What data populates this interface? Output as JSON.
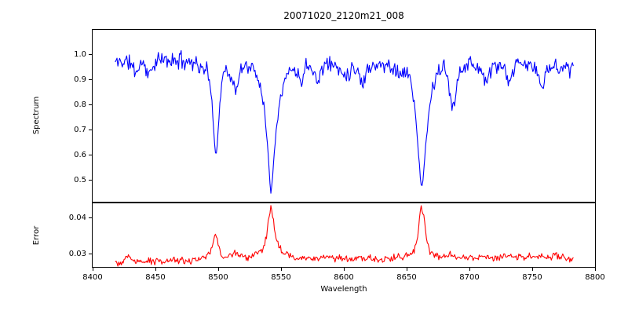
{
  "figure": {
    "title": "20071020_2120m21_008",
    "xlabel": "Wavelength",
    "background_color": "#ffffff",
    "text_color": "#000000",
    "axis_color": "#000000"
  },
  "chart_data": [
    {
      "type": "line",
      "series_name": "spectrum",
      "ylabel": "Spectrum",
      "line_color": "#0000ff",
      "legend": "none",
      "grid": false,
      "xlim": [
        8400,
        8800
      ],
      "ylim": [
        0.4156,
        1.1
      ],
      "yticks": [
        {
          "value": 0.5,
          "label": "0.5"
        },
        {
          "value": 0.6,
          "label": "0.6"
        },
        {
          "value": 0.7,
          "label": "0.7"
        },
        {
          "value": 0.8,
          "label": "0.8"
        },
        {
          "value": 0.9,
          "label": "0.9"
        },
        {
          "value": 1.0,
          "label": "1.0"
        }
      ],
      "xticks": [],
      "x_start": 8418,
      "x_end": 8783,
      "sample_step": 0.7,
      "continuum_level": 0.975,
      "noise_amplitude": 0.042,
      "noise_floor": 0.4,
      "noise_ref": 0.98,
      "noise_seed": 11,
      "absorption_lines": [
        {
          "center": 8498,
          "min_flux": 0.59
        },
        {
          "center": 8514,
          "min_flux": 0.86
        },
        {
          "center": 8542,
          "min_flux": 0.44
        },
        {
          "center": 8662,
          "min_flux": 0.46
        },
        {
          "center": 8686,
          "min_flux": 0.78
        }
      ],
      "envelope_points": [
        [
          8418,
          0.97
        ],
        [
          8424,
          0.975
        ],
        [
          8430,
          0.97
        ],
        [
          8434,
          0.93
        ],
        [
          8440,
          0.975
        ],
        [
          8445,
          0.915
        ],
        [
          8449,
          0.97
        ],
        [
          8456,
          0.98
        ],
        [
          8464,
          0.975
        ],
        [
          8470,
          0.98
        ],
        [
          8477,
          0.975
        ],
        [
          8483,
          0.97
        ],
        [
          8487,
          0.935
        ],
        [
          8490,
          0.955
        ],
        [
          8493,
          0.9
        ],
        [
          8496,
          0.74
        ],
        [
          8498,
          0.595
        ],
        [
          8499,
          0.62
        ],
        [
          8501,
          0.8
        ],
        [
          8503,
          0.9
        ],
        [
          8506,
          0.95
        ],
        [
          8509,
          0.93
        ],
        [
          8512,
          0.875
        ],
        [
          8515,
          0.865
        ],
        [
          8518,
          0.935
        ],
        [
          8521,
          0.96
        ],
        [
          8525,
          0.955
        ],
        [
          8529,
          0.935
        ],
        [
          8533,
          0.89
        ],
        [
          8536,
          0.82
        ],
        [
          8539,
          0.66
        ],
        [
          8541,
          0.5
        ],
        [
          8542,
          0.447
        ],
        [
          8543,
          0.5
        ],
        [
          8545,
          0.64
        ],
        [
          8547,
          0.75
        ],
        [
          8550,
          0.85
        ],
        [
          8554,
          0.91
        ],
        [
          8558,
          0.95
        ],
        [
          8562,
          0.93
        ],
        [
          8566,
          0.9
        ],
        [
          8570,
          0.96
        ],
        [
          8575,
          0.965
        ],
        [
          8579,
          0.875
        ],
        [
          8582,
          0.95
        ],
        [
          8588,
          0.965
        ],
        [
          8594,
          0.955
        ],
        [
          8599,
          0.93
        ],
        [
          8603,
          0.925
        ],
        [
          8608,
          0.955
        ],
        [
          8612,
          0.93
        ],
        [
          8615,
          0.87
        ],
        [
          8618,
          0.945
        ],
        [
          8624,
          0.965
        ],
        [
          8630,
          0.955
        ],
        [
          8636,
          0.96
        ],
        [
          8641,
          0.945
        ],
        [
          8645,
          0.92
        ],
        [
          8649,
          0.935
        ],
        [
          8653,
          0.9
        ],
        [
          8656,
          0.82
        ],
        [
          8659,
          0.64
        ],
        [
          8661,
          0.5
        ],
        [
          8662,
          0.468
        ],
        [
          8663,
          0.5
        ],
        [
          8665,
          0.63
        ],
        [
          8668,
          0.78
        ],
        [
          8671,
          0.88
        ],
        [
          8675,
          0.93
        ],
        [
          8679,
          0.955
        ],
        [
          8683,
          0.9
        ],
        [
          8686,
          0.79
        ],
        [
          8688,
          0.8
        ],
        [
          8691,
          0.93
        ],
        [
          8696,
          0.96
        ],
        [
          8702,
          0.965
        ],
        [
          8708,
          0.95
        ],
        [
          8714,
          0.885
        ],
        [
          8718,
          0.95
        ],
        [
          8723,
          0.96
        ],
        [
          8728,
          0.94
        ],
        [
          8731,
          0.87
        ],
        [
          8735,
          0.945
        ],
        [
          8740,
          0.965
        ],
        [
          8746,
          0.96
        ],
        [
          8752,
          0.95
        ],
        [
          8756,
          0.9
        ],
        [
          8759,
          0.875
        ],
        [
          8762,
          0.94
        ],
        [
          8768,
          0.96
        ],
        [
          8774,
          0.955
        ],
        [
          8779,
          0.945
        ],
        [
          8783,
          0.95
        ]
      ]
    },
    {
      "type": "line",
      "series_name": "error",
      "ylabel": "Error",
      "line_color": "#ff0000",
      "legend": "none",
      "grid": false,
      "xlim": [
        8400,
        8800
      ],
      "ylim": [
        0.0265,
        0.044
      ],
      "yticks": [
        {
          "value": 0.03,
          "label": "0.03"
        },
        {
          "value": 0.04,
          "label": "0.04"
        }
      ],
      "xticks": [
        {
          "value": 8400,
          "label": "8400"
        },
        {
          "value": 8450,
          "label": "8450"
        },
        {
          "value": 8500,
          "label": "8500"
        },
        {
          "value": 8550,
          "label": "8550"
        },
        {
          "value": 8600,
          "label": "8600"
        },
        {
          "value": 8650,
          "label": "8650"
        },
        {
          "value": 8700,
          "label": "8700"
        },
        {
          "value": 8750,
          "label": "8750"
        },
        {
          "value": 8800,
          "label": "8800"
        }
      ],
      "x_start": 8418,
      "x_end": 8783,
      "sample_step": 0.7,
      "baseline_level": 0.028,
      "noise_amplitude": 0.0012,
      "noise_floor": null,
      "noise_ref": null,
      "noise_seed": 99,
      "error_peaks": [
        {
          "center": 8429,
          "max_error": 0.03
        },
        {
          "center": 8498,
          "max_error": 0.036
        },
        {
          "center": 8542,
          "max_error": 0.0428
        },
        {
          "center": 8662,
          "max_error": 0.0434
        }
      ],
      "envelope_points": [
        [
          8418,
          0.0278
        ],
        [
          8424,
          0.0277
        ],
        [
          8429,
          0.03
        ],
        [
          8431,
          0.0281
        ],
        [
          8436,
          0.0279
        ],
        [
          8442,
          0.028
        ],
        [
          8448,
          0.0281
        ],
        [
          8455,
          0.028
        ],
        [
          8462,
          0.0281
        ],
        [
          8470,
          0.0282
        ],
        [
          8478,
          0.0283
        ],
        [
          8485,
          0.0287
        ],
        [
          8490,
          0.0291
        ],
        [
          8494,
          0.0305
        ],
        [
          8497,
          0.0352
        ],
        [
          8498,
          0.0358
        ],
        [
          8500,
          0.033
        ],
        [
          8502,
          0.03
        ],
        [
          8506,
          0.0292
        ],
        [
          8510,
          0.0297
        ],
        [
          8514,
          0.0306
        ],
        [
          8517,
          0.0294
        ],
        [
          8521,
          0.0291
        ],
        [
          8526,
          0.0293
        ],
        [
          8531,
          0.03
        ],
        [
          8535,
          0.0313
        ],
        [
          8538,
          0.034
        ],
        [
          8540,
          0.0395
        ],
        [
          8542,
          0.0428
        ],
        [
          8544,
          0.039
        ],
        [
          8546,
          0.034
        ],
        [
          8549,
          0.0315
        ],
        [
          8553,
          0.0301
        ],
        [
          8558,
          0.0294
        ],
        [
          8564,
          0.0291
        ],
        [
          8572,
          0.029
        ],
        [
          8580,
          0.029
        ],
        [
          8590,
          0.0289
        ],
        [
          8600,
          0.0289
        ],
        [
          8610,
          0.0288
        ],
        [
          8620,
          0.0288
        ],
        [
          8630,
          0.0288
        ],
        [
          8640,
          0.0289
        ],
        [
          8646,
          0.0291
        ],
        [
          8652,
          0.0296
        ],
        [
          8656,
          0.0308
        ],
        [
          8659,
          0.035
        ],
        [
          8661,
          0.042
        ],
        [
          8662,
          0.0434
        ],
        [
          8664,
          0.0395
        ],
        [
          8666,
          0.033
        ],
        [
          8669,
          0.0305
        ],
        [
          8673,
          0.0297
        ],
        [
          8678,
          0.0293
        ],
        [
          8684,
          0.0299
        ],
        [
          8688,
          0.0294
        ],
        [
          8694,
          0.0291
        ],
        [
          8700,
          0.0292
        ],
        [
          8706,
          0.029
        ],
        [
          8712,
          0.0293
        ],
        [
          8718,
          0.029
        ],
        [
          8725,
          0.0292
        ],
        [
          8731,
          0.0294
        ],
        [
          8738,
          0.0291
        ],
        [
          8744,
          0.0292
        ],
        [
          8750,
          0.0293
        ],
        [
          8756,
          0.0295
        ],
        [
          8762,
          0.0293
        ],
        [
          8768,
          0.0294
        ],
        [
          8773,
          0.0292
        ],
        [
          8778,
          0.0288
        ],
        [
          8783,
          0.0284
        ]
      ]
    }
  ]
}
